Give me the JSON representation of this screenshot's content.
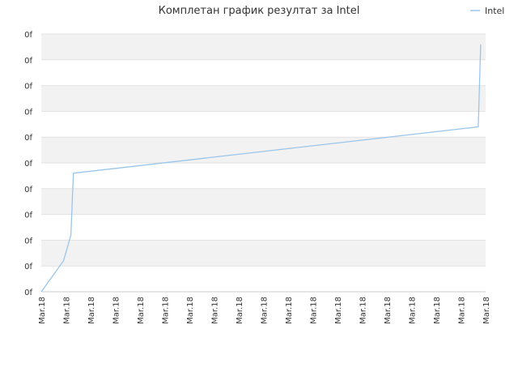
{
  "chart_data": {
    "type": "line",
    "title": "Комплетан график резултат за Intel",
    "xlabel": "",
    "ylabel": "",
    "x_tick_labels": [
      "Mar.18",
      "Mar.18",
      "Mar.18",
      "Mar.18",
      "Mar.18",
      "Mar.18",
      "Mar.18",
      "Mar.18",
      "Mar.18",
      "Mar.18",
      "Mar.18",
      "Mar.18",
      "Mar.18",
      "Mar.18",
      "Mar.18",
      "Mar.18",
      "Mar.18",
      "Mar.18",
      "Mar.18"
    ],
    "y_tick_labels": [
      "0f",
      "0f",
      "0f",
      "0f",
      "0f",
      "0f",
      "0f",
      "0f",
      "0f",
      "0f",
      "0f"
    ],
    "xlim": [
      0,
      18
    ],
    "ylim": [
      0,
      10
    ],
    "grid": true,
    "legend_position": "top-right",
    "series": [
      {
        "name": "Intel",
        "color": "#99c5ec",
        "points": [
          {
            "x": 0.0,
            "y": 0.0
          },
          {
            "x": 0.9,
            "y": 1.2
          },
          {
            "x": 1.2,
            "y": 2.2
          },
          {
            "x": 1.3,
            "y": 4.6
          },
          {
            "x": 17.7,
            "y": 6.4
          },
          {
            "x": 17.8,
            "y": 9.6
          }
        ]
      }
    ]
  },
  "colors": {
    "band_alt": "#f2f2f2",
    "grid": "#e2e2e2",
    "axis": "#cccccc"
  }
}
